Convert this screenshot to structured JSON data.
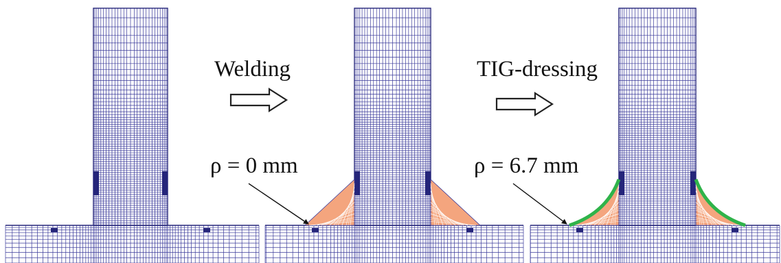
{
  "steps": [
    {
      "label": "Welding"
    },
    {
      "label": "TIG-dressing"
    }
  ],
  "panels": [
    {
      "id": "base-joint",
      "weld": false,
      "dressing": false
    },
    {
      "id": "welded-joint",
      "weld": true,
      "dressing": false,
      "radius_label": "ρ = 0 mm"
    },
    {
      "id": "tig-dressed-joint",
      "weld": true,
      "dressing": true,
      "radius_label": "ρ = 6.7 mm"
    }
  ],
  "colors": {
    "mesh": "#3a3a9a",
    "mesh_dense": "#25257a",
    "weld_fill": "#f4a57e",
    "weld_mesh": "#ffffff",
    "dressing": "#2fb34a",
    "arrow_outline": "#222222"
  },
  "icons": {
    "process_arrow": "hollow-right-arrow-icon",
    "pointer": "leader-arrow-icon"
  }
}
